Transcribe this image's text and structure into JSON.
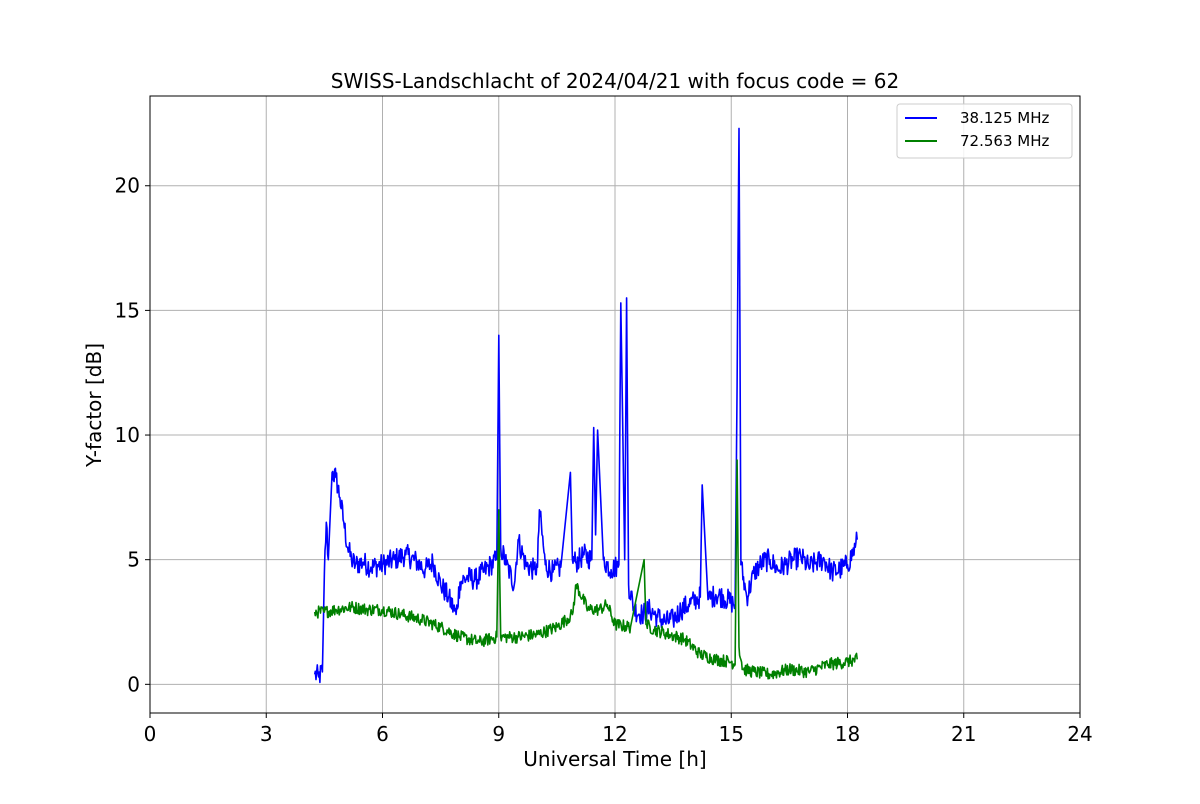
{
  "chart_data": {
    "type": "line",
    "title": "SWISS-Landschlacht of 2024/04/21 with focus code = 62",
    "xlabel": "Universal Time [h]",
    "ylabel": "Y-factor [dB]",
    "xlim": [
      0,
      24
    ],
    "ylim": [
      -1.15,
      23.6
    ],
    "xticks": [
      0,
      3,
      6,
      9,
      12,
      15,
      18,
      21,
      24
    ],
    "yticks": [
      0,
      5,
      10,
      15,
      20
    ],
    "grid": true,
    "legend_position": "top-right",
    "series": [
      {
        "name": "38.125 MHz",
        "color": "#0000ff",
        "x": [
          4.25,
          4.35,
          4.45,
          4.5,
          4.55,
          4.6,
          4.7,
          4.8,
          4.9,
          5.0,
          5.1,
          5.2,
          5.3,
          5.5,
          5.7,
          6.0,
          6.3,
          6.6,
          6.9,
          7.1,
          7.3,
          7.5,
          7.7,
          7.9,
          8.0,
          8.2,
          8.4,
          8.6,
          8.8,
          8.95,
          9.0,
          9.05,
          9.2,
          9.4,
          9.5,
          9.7,
          9.9,
          10.0,
          10.05,
          10.2,
          10.4,
          10.6,
          10.85,
          10.9,
          11.0,
          11.2,
          11.4,
          11.45,
          11.5,
          11.55,
          11.7,
          11.9,
          12.1,
          12.15,
          12.25,
          12.3,
          12.35,
          12.5,
          12.7,
          12.9,
          13.1,
          13.3,
          13.5,
          13.7,
          13.9,
          14.1,
          14.2,
          14.25,
          14.4,
          14.6,
          14.8,
          15.0,
          15.1,
          15.15,
          15.2,
          15.25,
          15.4,
          15.6,
          15.8,
          16.0,
          16.2,
          16.4,
          16.6,
          16.8,
          17.0,
          17.2,
          17.4,
          17.6,
          17.8,
          18.0,
          18.2,
          18.25
        ],
        "y": [
          0.4,
          0.3,
          0.5,
          4.5,
          6.5,
          5.0,
          8.5,
          8.3,
          7.5,
          6.5,
          5.5,
          5.0,
          4.8,
          4.9,
          4.7,
          4.8,
          5.0,
          5.2,
          4.9,
          4.6,
          4.9,
          4.0,
          3.5,
          2.8,
          4.1,
          4.3,
          4.2,
          4.5,
          4.8,
          5.0,
          14.0,
          5.5,
          4.8,
          4.0,
          5.8,
          4.8,
          4.6,
          4.7,
          7.0,
          4.8,
          4.5,
          4.7,
          8.5,
          5.0,
          4.9,
          5.2,
          5.0,
          10.3,
          6.0,
          10.2,
          5.0,
          4.6,
          4.8,
          15.3,
          5.0,
          15.5,
          4.0,
          3.0,
          2.8,
          3.0,
          2.7,
          2.5,
          2.6,
          3.0,
          3.2,
          3.4,
          3.5,
          8.0,
          3.4,
          3.6,
          3.5,
          3.3,
          3.2,
          12.0,
          22.3,
          4.8,
          3.5,
          4.5,
          4.9,
          5.0,
          4.6,
          4.8,
          5.0,
          5.1,
          4.7,
          4.9,
          5.0,
          4.5,
          4.6,
          4.8,
          5.5,
          5.8
        ]
      },
      {
        "name": "72.563 MHz",
        "color": "#008000",
        "x": [
          4.25,
          4.5,
          4.8,
          5.2,
          5.6,
          6.0,
          6.5,
          7.0,
          7.5,
          8.0,
          8.5,
          8.95,
          9.0,
          9.05,
          9.5,
          10.0,
          10.5,
          10.9,
          11.0,
          11.3,
          11.6,
          11.8,
          12.0,
          12.4,
          12.75,
          12.8,
          13.0,
          13.4,
          13.8,
          14.2,
          14.6,
          15.0,
          15.1,
          15.15,
          15.2,
          15.3,
          15.6,
          16.0,
          16.5,
          17.0,
          17.5,
          18.0,
          18.25
        ],
        "y": [
          2.9,
          2.9,
          3.0,
          3.1,
          3.0,
          3.0,
          2.8,
          2.6,
          2.3,
          1.9,
          1.7,
          1.9,
          7.0,
          1.9,
          1.9,
          2.0,
          2.3,
          2.8,
          4.0,
          3.0,
          3.0,
          3.2,
          2.4,
          2.3,
          5.0,
          2.4,
          2.2,
          2.0,
          1.8,
          1.2,
          1.0,
          0.9,
          0.8,
          9.0,
          1.5,
          0.6,
          0.5,
          0.4,
          0.6,
          0.5,
          0.8,
          0.9,
          1.0
        ]
      }
    ]
  }
}
